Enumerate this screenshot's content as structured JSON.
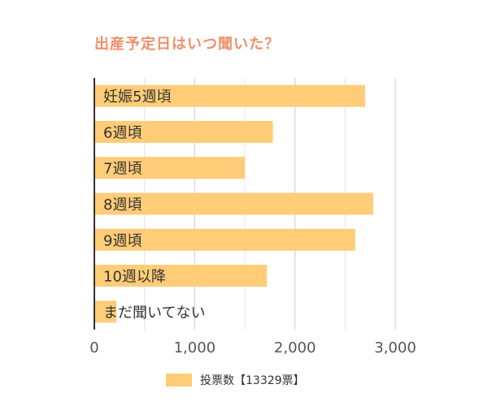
{
  "chart_data": {
    "type": "bar",
    "orientation": "horizontal",
    "title": "出産予定日はいつ聞いた？",
    "categories": [
      "妊娠5週頃",
      "6週頃",
      "7週頃",
      "8週頃",
      "9週頃",
      "10週以降",
      "まだ聞いてない"
    ],
    "series": [
      {
        "name": "投票数【13329票】",
        "values": [
          2700,
          1780,
          1500,
          2780,
          2600,
          1720,
          220
        ]
      }
    ],
    "xlim": [
      0,
      3000
    ],
    "x_ticks": [
      "0",
      "1,000",
      "2,000",
      "3,000"
    ],
    "x_tick_values": [
      0,
      1000,
      2000,
      3000
    ],
    "grid": true,
    "legend_position": "bottom",
    "xlabel": "",
    "ylabel": ""
  },
  "colors": {
    "bar": "#ffcc77",
    "title": "#f0906a",
    "label": "#333333",
    "grid": "#cccccc",
    "axis": "#333333",
    "tick": "#555555"
  }
}
